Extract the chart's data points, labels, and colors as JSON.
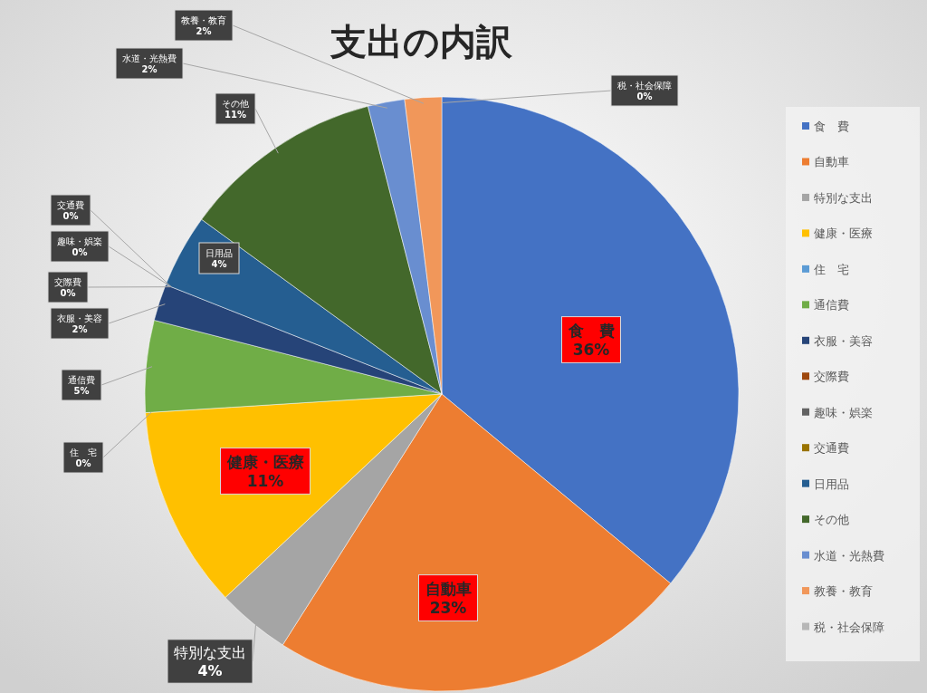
{
  "chart_data": {
    "type": "pie",
    "title": "支出の内訳",
    "categories": [
      "食　費",
      "自動車",
      "特別な支出",
      "健康・医療",
      "住　宅",
      "通信費",
      "衣服・美容",
      "交際費",
      "趣味・娯楽",
      "交通費",
      "日用品",
      "その他",
      "水道・光熱費",
      "教養・教育",
      "税・社会保障"
    ],
    "values": [
      36,
      23,
      4,
      11,
      0,
      5,
      2,
      0,
      0,
      0,
      4,
      11,
      2,
      2,
      0
    ],
    "value_labels": [
      "36%",
      "23%",
      "4%",
      "11%",
      "0%",
      "5%",
      "2%",
      "0%",
      "0%",
      "0%",
      "4%",
      "11%",
      "2%",
      "2%",
      "0%"
    ],
    "colors": [
      "#4472c4",
      "#ed7d31",
      "#a5a5a5",
      "#ffc000",
      "#5b9bd5",
      "#70ad47",
      "#264478",
      "#9e480e",
      "#636363",
      "#997300",
      "#255e91",
      "#43682b",
      "#698ed0",
      "#f1975a",
      "#b7b7b7"
    ],
    "legend": "right"
  }
}
